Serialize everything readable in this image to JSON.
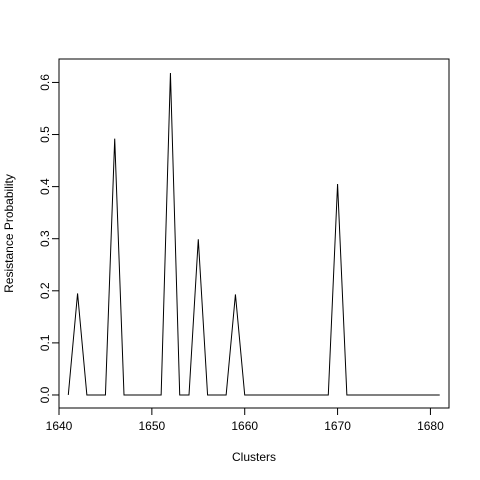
{
  "chart_data": {
    "type": "line",
    "title": "",
    "xlabel": "Clusters",
    "ylabel": "Resistance Probability",
    "xlim": [
      1640,
      1682
    ],
    "ylim": [
      -0.025,
      0.645
    ],
    "x_ticks": [
      1640,
      1650,
      1660,
      1670,
      1680
    ],
    "x_tick_labels": [
      "1640",
      "1650",
      "1660",
      "1670",
      "1680"
    ],
    "y_ticks": [
      0.0,
      0.1,
      0.2,
      0.3,
      0.4,
      0.5,
      0.6
    ],
    "y_tick_labels": [
      "0.0",
      "0.1",
      "0.2",
      "0.3",
      "0.4",
      "0.5",
      "0.6"
    ],
    "grid": false,
    "series": [
      {
        "x": [
          1641,
          1642,
          1643,
          1644,
          1645,
          1646,
          1647,
          1648,
          1649,
          1650,
          1651,
          1652,
          1653,
          1654,
          1655,
          1656,
          1657,
          1658,
          1659,
          1660,
          1661,
          1662,
          1663,
          1664,
          1665,
          1666,
          1667,
          1668,
          1669,
          1670,
          1671,
          1672,
          1673,
          1674,
          1675,
          1676,
          1677,
          1678,
          1679,
          1680,
          1681
        ],
        "values": [
          0,
          0.195,
          0,
          0,
          0,
          0.492,
          0,
          0,
          0,
          0,
          0,
          0.618,
          0,
          0,
          0.299,
          0,
          0,
          0,
          0.193,
          0,
          0,
          0,
          0,
          0,
          0,
          0,
          0,
          0,
          0,
          0.405,
          0,
          0,
          0,
          0,
          0,
          0,
          0,
          0,
          0,
          0,
          0
        ]
      }
    ]
  }
}
